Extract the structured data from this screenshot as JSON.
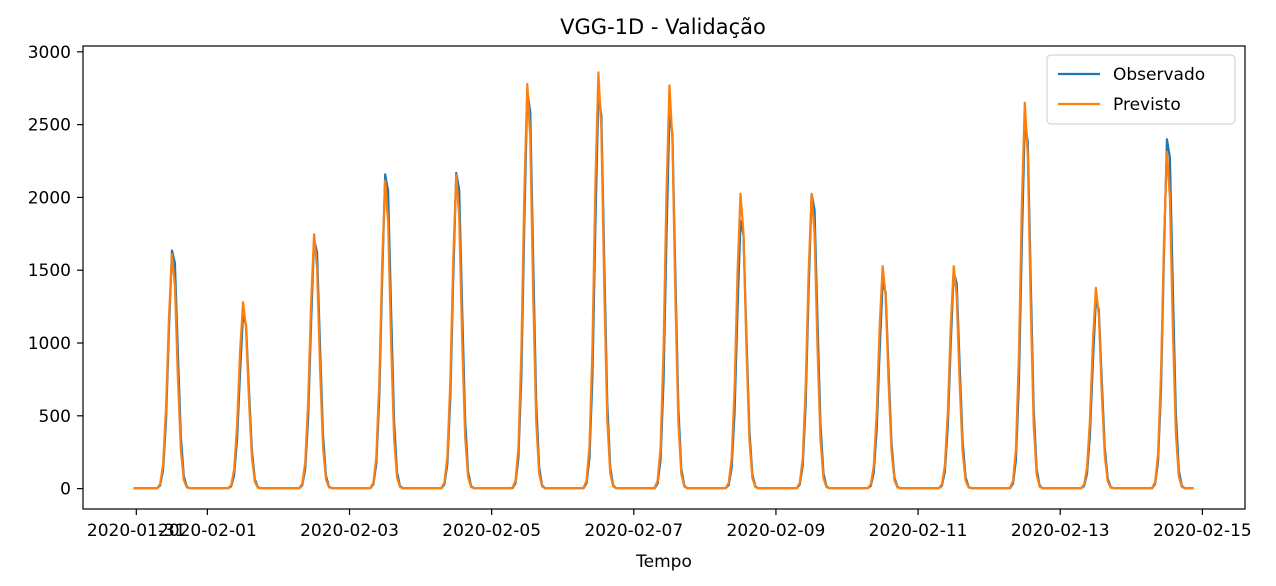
{
  "chart_data": {
    "type": "line",
    "title": "VGG-1D - Validação",
    "xlabel": "Tempo",
    "ylabel": "",
    "x_ticks": [
      "2020-01-31",
      "2020-02-01",
      "2020-02-03",
      "2020-02-05",
      "2020-02-07",
      "2020-02-09",
      "2020-02-11",
      "2020-02-13",
      "2020-02-15"
    ],
    "x_tick_days": [
      30,
      31,
      33,
      35,
      37,
      39,
      41,
      43,
      45
    ],
    "xlim_days": [
      29.25,
      45.6
    ],
    "y_ticks": [
      0,
      500,
      1000,
      1500,
      2000,
      2500,
      3000
    ],
    "ylim": [
      -140,
      3040
    ],
    "grid": false,
    "legend_position": "top-right",
    "colors": {
      "Observado": "#1f77b4",
      "Previsto": "#ff7f0e"
    },
    "peaks": {
      "day_offset": [
        30.5,
        31.5,
        32.5,
        33.5,
        34.5,
        35.5,
        36.5,
        37.5,
        38.5,
        39.5,
        40.5,
        41.5,
        42.5,
        43.5,
        44.5
      ],
      "observed": [
        1690,
        1230,
        1770,
        2230,
        2240,
        2820,
        2800,
        2660,
        1900,
        2090,
        1470,
        1540,
        2600,
        1340,
        2480
      ],
      "predicted": [
        1620,
        1290,
        1760,
        2130,
        2170,
        2800,
        2880,
        2790,
        2040,
        2040,
        1540,
        1540,
        2670,
        1390,
        2330
      ]
    },
    "series": [
      {
        "name": "Observado"
      },
      {
        "name": "Previsto"
      }
    ]
  }
}
